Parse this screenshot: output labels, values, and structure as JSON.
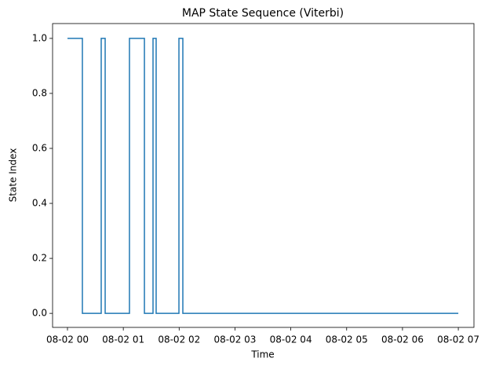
{
  "chart_data": {
    "type": "line",
    "drawstyle": "steps-post",
    "title": "MAP State Sequence (Viterbi)",
    "x_label": "Time",
    "y_label": "State Index",
    "x": [
      0,
      0.267,
      0.604,
      0.675,
      1.11,
      1.378,
      1.532,
      1.588,
      1.996,
      2.066,
      7.0
    ],
    "values": [
      1,
      0,
      1,
      0,
      1,
      0,
      1,
      0,
      1,
      0,
      0
    ],
    "color": "#1f77b4",
    "xlim": [
      -0.267,
      7.28
    ],
    "xticks": [
      {
        "value": 0,
        "label": "08-02 00"
      },
      {
        "value": 1,
        "label": "08-02 01"
      },
      {
        "value": 2,
        "label": "08-02 02"
      },
      {
        "value": 3,
        "label": "08-02 03"
      },
      {
        "value": 4,
        "label": "08-02 04"
      },
      {
        "value": 5,
        "label": "08-02 05"
      },
      {
        "value": 6,
        "label": "08-02 06"
      },
      {
        "value": 7,
        "label": "08-02 07"
      }
    ],
    "ylim": [
      -0.051,
      1.054
    ],
    "yticks": [
      {
        "value": 0,
        "label": "0.0"
      },
      0.2,
      0.4,
      0.6,
      0.8,
      {
        "value": 1,
        "label": "1.0"
      }
    ]
  }
}
